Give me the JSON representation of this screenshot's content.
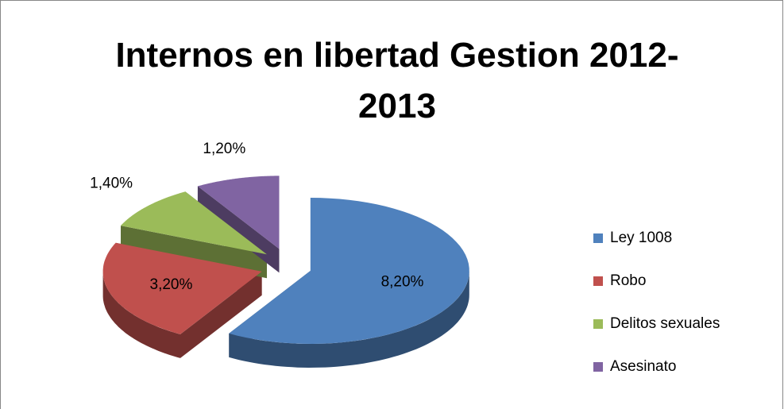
{
  "chart_data": {
    "type": "pie",
    "title": "Internos en libertad  Gestion 2012-2013",
    "categories": [
      "Ley 1008",
      "Robo",
      "Delitos sexuales",
      "Asesinato"
    ],
    "values": [
      8.2,
      3.2,
      1.4,
      1.2
    ],
    "value_labels": [
      "8,20%",
      "3,20%",
      "1,40%",
      "1,20%"
    ],
    "colors": [
      "#4f81bd",
      "#c0504d",
      "#9bbb59",
      "#8064a2"
    ],
    "legend": "right"
  }
}
